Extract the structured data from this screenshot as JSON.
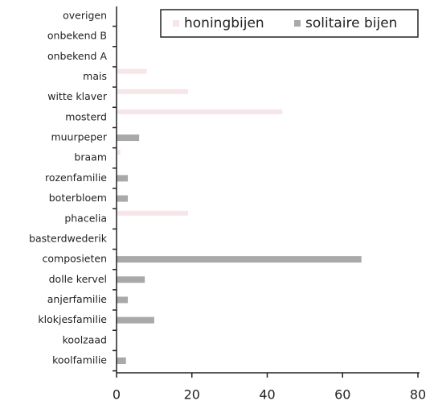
{
  "chart_data": {
    "type": "bar",
    "orientation": "horizontal",
    "categories": [
      "overigen",
      "onbekend B",
      "onbekend A",
      "mais",
      "witte klaver",
      "mosterd",
      "muurpeper",
      "braam",
      "rozenfamilie",
      "boterbloem",
      "phacelia",
      "basterdwederik",
      "composieten",
      "dolle kervel",
      "anjerfamilie",
      "klokjesfamilie",
      "koolzaad",
      "koolfamilie"
    ],
    "series": [
      {
        "name": "honingbijen",
        "color": "#f6e6e8",
        "values": [
          0,
          0,
          0,
          8,
          19,
          44,
          0,
          1,
          0,
          0,
          19,
          0,
          0,
          0,
          0,
          0,
          0,
          0
        ]
      },
      {
        "name": "solitaire bijen",
        "color": "#a9a9a9",
        "values": [
          0,
          0,
          0,
          0,
          0,
          0,
          6,
          0,
          3,
          3,
          0,
          0,
          65,
          7.5,
          3,
          10,
          0,
          2.5
        ]
      }
    ],
    "xlim": [
      0,
      80
    ],
    "xticks": [
      0,
      20,
      40,
      60,
      80
    ],
    "legend": "top-right"
  }
}
